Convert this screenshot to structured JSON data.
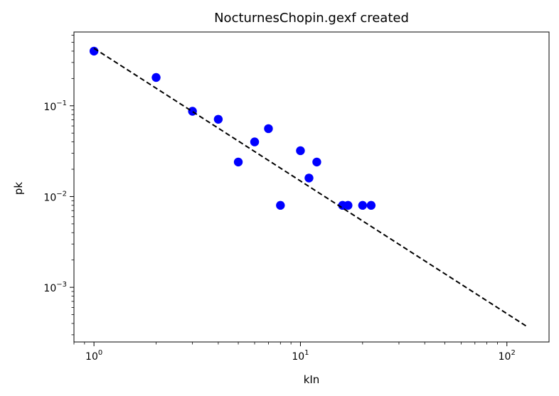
{
  "chart_data": {
    "type": "scatter",
    "title": "NocturnesChopin.gexf created",
    "xlabel": "kIn",
    "ylabel": "pk",
    "xscale": "log",
    "yscale": "log",
    "xlim": [
      0.8,
      160
    ],
    "ylim": [
      0.00025,
      0.65
    ],
    "x_ticks": [
      {
        "base": "10",
        "exp": "0",
        "value": 1
      },
      {
        "base": "10",
        "exp": "1",
        "value": 10
      },
      {
        "base": "10",
        "exp": "2",
        "value": 100
      }
    ],
    "y_ticks": [
      {
        "base": "10",
        "exp": "−3",
        "value": 0.001
      },
      {
        "base": "10",
        "exp": "−2",
        "value": 0.01
      },
      {
        "base": "10",
        "exp": "−1",
        "value": 0.1
      }
    ],
    "grid": false,
    "series": [
      {
        "marker": "circle",
        "color": "#0000ff",
        "points": [
          {
            "x": 1,
            "y": 0.4
          },
          {
            "x": 2,
            "y": 0.205
          },
          {
            "x": 3,
            "y": 0.087
          },
          {
            "x": 4,
            "y": 0.071
          },
          {
            "x": 5,
            "y": 0.024
          },
          {
            "x": 6,
            "y": 0.04
          },
          {
            "x": 7,
            "y": 0.056
          },
          {
            "x": 8,
            "y": 0.008
          },
          {
            "x": 10,
            "y": 0.032
          },
          {
            "x": 11,
            "y": 0.016
          },
          {
            "x": 12,
            "y": 0.024
          },
          {
            "x": 16,
            "y": 0.008
          },
          {
            "x": 17,
            "y": 0.008
          },
          {
            "x": 20,
            "y": 0.008
          },
          {
            "x": 22,
            "y": 0.008
          }
        ]
      },
      {
        "style": "dashed-line",
        "color": "#000000",
        "points": [
          {
            "x": 1,
            "y": 0.43
          },
          {
            "x": 125,
            "y": 0.00037
          }
        ]
      }
    ]
  }
}
